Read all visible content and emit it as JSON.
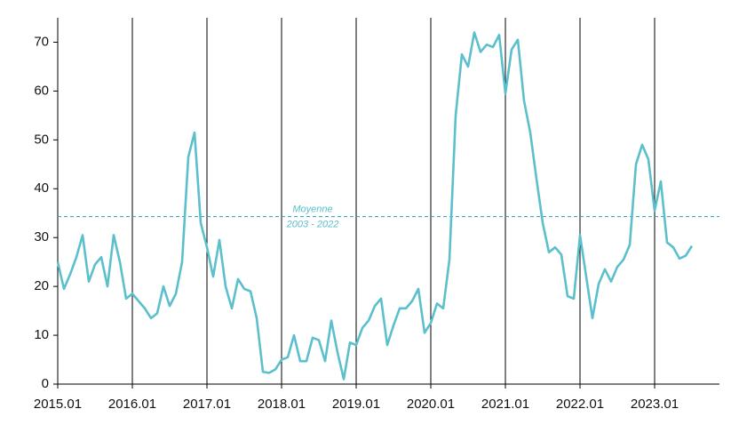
{
  "chart_data": {
    "type": "line",
    "categories": [
      "2015.01",
      null,
      null,
      null,
      null,
      null,
      null,
      null,
      null,
      null,
      null,
      null,
      "2016.01",
      null,
      null,
      null,
      null,
      null,
      null,
      null,
      null,
      null,
      null,
      null,
      "2017.01",
      null,
      null,
      null,
      null,
      null,
      null,
      null,
      null,
      null,
      null,
      null,
      "2018.01",
      null,
      null,
      null,
      null,
      null,
      null,
      null,
      null,
      null,
      null,
      null,
      "2019.01",
      null,
      null,
      null,
      null,
      null,
      null,
      null,
      null,
      null,
      null,
      null,
      "2020.01",
      null,
      null,
      null,
      null,
      null,
      null,
      null,
      null,
      null,
      null,
      null,
      "2021.01",
      null,
      null,
      null,
      null,
      null,
      null,
      null,
      null,
      null,
      null,
      null,
      "2022.01",
      null,
      null,
      null,
      null,
      null,
      null,
      null,
      null,
      null,
      null,
      null,
      "2023.01",
      null,
      null,
      null,
      null,
      null,
      null
    ],
    "series": [
      {
        "color": "#5bbfcc",
        "values": [
          25,
          19.5,
          22.5,
          26,
          30.5,
          21,
          24.5,
          26,
          20,
          30.5,
          25,
          17.5,
          18.5,
          17,
          15.5,
          13.5,
          14.5,
          20,
          16,
          18.5,
          25,
          46.5,
          51.5,
          33,
          28,
          22,
          29.5,
          20,
          15.5,
          21.5,
          19.5,
          19,
          13.5,
          2.5,
          2.3,
          3,
          5,
          5.5,
          10,
          4.7,
          4.7,
          9.5,
          9,
          4.7,
          13,
          6.5,
          1,
          8.5,
          8,
          11.5,
          13,
          16,
          17.5,
          8,
          12,
          15.5,
          15.5,
          17,
          19.5,
          10.5,
          12.5,
          16.5,
          15.5,
          25.5,
          55,
          67.5,
          65,
          72,
          68,
          69.5,
          69,
          71.5,
          59.5,
          68.5,
          70.5,
          58,
          51.5,
          42,
          33,
          27,
          28,
          26.5,
          18,
          17.5,
          30.5,
          22,
          13.5,
          20.5,
          23.5,
          21,
          24,
          25.5,
          28.5,
          45,
          49,
          46,
          35.5,
          41.5,
          29,
          28,
          25.7,
          26.3,
          28.3
        ]
      }
    ],
    "reference": {
      "value": 34.3,
      "label": [
        "Moyenne",
        "2003 - 2022"
      ]
    },
    "ylim": [
      0,
      75
    ],
    "yticks": [
      0,
      10,
      20,
      30,
      40,
      50,
      60,
      70
    ]
  }
}
